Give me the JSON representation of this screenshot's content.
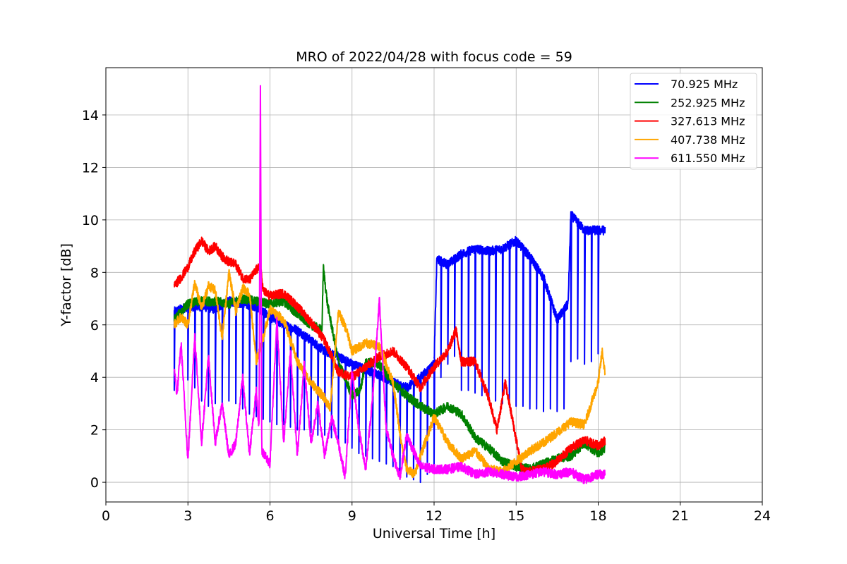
{
  "chart_data": {
    "type": "line",
    "title": "MRO of 2022/04/28 with focus code = 59",
    "xlabel": "Universal Time [h]",
    "ylabel": "Y-factor [dB]",
    "xlim": [
      0,
      24
    ],
    "ylim": [
      -0.75,
      15.8
    ],
    "xticks": [
      0,
      3,
      6,
      9,
      12,
      15,
      18,
      21,
      24
    ],
    "xtick_labels": [
      "0",
      "3",
      "6",
      "9",
      "12",
      "15",
      "18",
      "21",
      "24"
    ],
    "yticks": [
      0,
      2,
      4,
      6,
      8,
      10,
      12,
      14
    ],
    "ytick_labels": [
      "0",
      "2",
      "4",
      "6",
      "8",
      "10",
      "12",
      "14"
    ],
    "grid": true,
    "legend_position": "top-right",
    "series": [
      {
        "name": " 70.925 MHz",
        "color": "#0000ff",
        "points": [
          [
            2.5,
            6.5
          ],
          [
            3.0,
            6.7
          ],
          [
            3.5,
            6.7
          ],
          [
            4.0,
            6.6
          ],
          [
            4.5,
            6.9
          ],
          [
            5.0,
            6.8
          ],
          [
            5.5,
            6.7
          ],
          [
            6.0,
            6.3
          ],
          [
            6.5,
            6.0
          ],
          [
            7.0,
            5.8
          ],
          [
            7.5,
            5.4
          ],
          [
            8.0,
            5.0
          ],
          [
            8.5,
            4.8
          ],
          [
            9.0,
            4.5
          ],
          [
            9.5,
            4.3
          ],
          [
            10.0,
            4.1
          ],
          [
            10.5,
            3.8
          ],
          [
            11.0,
            3.6
          ],
          [
            11.5,
            4.0
          ],
          [
            12.0,
            4.5
          ],
          [
            12.1,
            8.5
          ],
          [
            12.5,
            8.3
          ],
          [
            13.0,
            8.7
          ],
          [
            13.5,
            8.9
          ],
          [
            14.0,
            8.8
          ],
          [
            14.5,
            8.9
          ],
          [
            15.0,
            9.2
          ],
          [
            15.5,
            8.6
          ],
          [
            16.0,
            7.8
          ],
          [
            16.5,
            6.2
          ],
          [
            16.9,
            6.8
          ],
          [
            17.0,
            10.2
          ],
          [
            17.5,
            9.6
          ],
          [
            18.0,
            9.6
          ],
          [
            18.25,
            9.6
          ]
        ],
        "dips": [
          [
            2.5,
            3.5
          ],
          [
            3.0,
            3.9
          ],
          [
            3.25,
            3.6
          ],
          [
            3.5,
            3.1
          ],
          [
            3.75,
            2.9
          ],
          [
            4.0,
            3.0
          ],
          [
            4.25,
            2.9
          ],
          [
            4.5,
            3.1
          ],
          [
            4.75,
            3.0
          ],
          [
            5.0,
            2.8
          ],
          [
            5.25,
            2.6
          ],
          [
            5.5,
            2.5
          ],
          [
            5.75,
            2.4
          ],
          [
            6.0,
            2.3
          ],
          [
            6.25,
            2.2
          ],
          [
            6.5,
            2.2
          ],
          [
            6.75,
            2.1
          ],
          [
            7.0,
            2.0
          ],
          [
            7.25,
            2.0
          ],
          [
            7.5,
            1.9
          ],
          [
            7.75,
            1.8
          ],
          [
            8.0,
            1.8
          ],
          [
            8.25,
            1.7
          ],
          [
            8.5,
            1.6
          ],
          [
            8.75,
            1.5
          ],
          [
            9.0,
            1.3
          ],
          [
            9.25,
            1.1
          ],
          [
            9.5,
            1.0
          ],
          [
            9.75,
            0.9
          ],
          [
            10.0,
            0.8
          ],
          [
            10.25,
            0.7
          ],
          [
            10.5,
            0.6
          ],
          [
            10.75,
            0.4
          ],
          [
            11.0,
            0.2
          ],
          [
            11.25,
            0.1
          ],
          [
            11.5,
            0.0
          ],
          [
            11.75,
            0.3
          ],
          [
            12.0,
            0.4
          ],
          [
            12.25,
            4.0
          ],
          [
            12.5,
            4.5
          ],
          [
            12.75,
            4.8
          ],
          [
            13.0,
            3.5
          ],
          [
            13.25,
            3.5
          ],
          [
            13.5,
            3.4
          ],
          [
            13.75,
            3.3
          ],
          [
            14.0,
            3.2
          ],
          [
            14.25,
            3.1
          ],
          [
            14.5,
            3.0
          ],
          [
            14.75,
            3.0
          ],
          [
            15.0,
            2.9
          ],
          [
            15.25,
            2.9
          ],
          [
            15.5,
            2.8
          ],
          [
            15.75,
            2.8
          ],
          [
            16.0,
            2.7
          ],
          [
            16.25,
            2.8
          ],
          [
            16.5,
            2.7
          ],
          [
            16.75,
            2.8
          ],
          [
            17.0,
            4.6
          ],
          [
            17.25,
            4.7
          ],
          [
            17.5,
            4.5
          ],
          [
            17.75,
            4.6
          ],
          [
            18.0,
            4.9
          ]
        ]
      },
      {
        "name": "252.925 MHz",
        "color": "#008000",
        "points": [
          [
            2.5,
            6.2
          ],
          [
            3.0,
            6.8
          ],
          [
            3.5,
            6.9
          ],
          [
            4.0,
            6.9
          ],
          [
            4.5,
            6.8
          ],
          [
            5.0,
            7.0
          ],
          [
            5.5,
            6.9
          ],
          [
            6.0,
            6.8
          ],
          [
            6.5,
            6.9
          ],
          [
            7.0,
            6.4
          ],
          [
            7.5,
            6.0
          ],
          [
            7.9,
            5.8
          ],
          [
            7.95,
            8.2
          ],
          [
            8.1,
            6.8
          ],
          [
            8.5,
            4.6
          ],
          [
            9.0,
            3.3
          ],
          [
            9.3,
            3.5
          ],
          [
            9.5,
            4.6
          ],
          [
            10.0,
            4.5
          ],
          [
            10.5,
            3.8
          ],
          [
            11.0,
            3.3
          ],
          [
            11.5,
            2.9
          ],
          [
            12.0,
            2.6
          ],
          [
            12.5,
            2.9
          ],
          [
            13.0,
            2.6
          ],
          [
            13.5,
            1.7
          ],
          [
            14.0,
            1.3
          ],
          [
            14.5,
            0.8
          ],
          [
            15.0,
            0.6
          ],
          [
            15.5,
            0.5
          ],
          [
            16.0,
            0.7
          ],
          [
            16.5,
            0.9
          ],
          [
            17.0,
            1.0
          ],
          [
            17.5,
            1.5
          ],
          [
            18.0,
            1.1
          ],
          [
            18.25,
            1.3
          ]
        ]
      },
      {
        "name": "327.613 MHz",
        "color": "#ff0000",
        "points": [
          [
            2.5,
            7.5
          ],
          [
            2.75,
            7.8
          ],
          [
            3.0,
            8.2
          ],
          [
            3.25,
            8.8
          ],
          [
            3.5,
            9.2
          ],
          [
            3.75,
            8.8
          ],
          [
            4.0,
            9.0
          ],
          [
            4.25,
            8.6
          ],
          [
            4.5,
            8.4
          ],
          [
            4.75,
            8.3
          ],
          [
            5.0,
            7.8
          ],
          [
            5.25,
            7.7
          ],
          [
            5.5,
            8.1
          ],
          [
            5.65,
            8.2
          ],
          [
            5.75,
            7.3
          ],
          [
            6.0,
            7.1
          ],
          [
            6.5,
            7.2
          ],
          [
            7.0,
            6.7
          ],
          [
            7.5,
            6.1
          ],
          [
            8.0,
            5.4
          ],
          [
            8.5,
            4.2
          ],
          [
            9.0,
            4.0
          ],
          [
            9.5,
            4.4
          ],
          [
            10.0,
            4.8
          ],
          [
            10.5,
            5.0
          ],
          [
            11.0,
            4.4
          ],
          [
            11.5,
            3.6
          ],
          [
            12.0,
            4.4
          ],
          [
            12.5,
            5.0
          ],
          [
            12.8,
            5.8
          ],
          [
            13.0,
            4.6
          ],
          [
            13.5,
            4.6
          ],
          [
            14.0,
            3.2
          ],
          [
            14.3,
            2.0
          ],
          [
            14.6,
            3.8
          ],
          [
            14.9,
            2.2
          ],
          [
            15.2,
            0.5
          ],
          [
            15.5,
            0.4
          ],
          [
            16.0,
            0.5
          ],
          [
            16.5,
            0.8
          ],
          [
            17.0,
            1.3
          ],
          [
            17.5,
            1.6
          ],
          [
            18.0,
            1.4
          ],
          [
            18.25,
            1.6
          ]
        ]
      },
      {
        "name": "407.738 MHz",
        "color": "#ffa500",
        "points": [
          [
            2.5,
            6.0
          ],
          [
            2.75,
            6.3
          ],
          [
            3.0,
            6.0
          ],
          [
            3.25,
            7.6
          ],
          [
            3.5,
            6.6
          ],
          [
            3.75,
            7.5
          ],
          [
            4.0,
            7.3
          ],
          [
            4.25,
            5.5
          ],
          [
            4.5,
            8.0
          ],
          [
            4.75,
            6.5
          ],
          [
            5.0,
            7.4
          ],
          [
            5.25,
            7.2
          ],
          [
            5.5,
            4.6
          ],
          [
            5.75,
            5.5
          ],
          [
            6.0,
            6.6
          ],
          [
            6.5,
            6.2
          ],
          [
            7.0,
            4.6
          ],
          [
            7.5,
            3.8
          ],
          [
            8.0,
            3.2
          ],
          [
            8.2,
            2.8
          ],
          [
            8.5,
            6.5
          ],
          [
            8.8,
            5.8
          ],
          [
            9.0,
            5.0
          ],
          [
            9.5,
            5.3
          ],
          [
            10.0,
            5.2
          ],
          [
            10.5,
            3.8
          ],
          [
            10.8,
            1.5
          ],
          [
            11.0,
            0.5
          ],
          [
            11.3,
            0.3
          ],
          [
            11.5,
            1.0
          ],
          [
            12.0,
            2.5
          ],
          [
            12.5,
            1.5
          ],
          [
            13.0,
            0.9
          ],
          [
            13.5,
            1.2
          ],
          [
            14.0,
            0.5
          ],
          [
            14.5,
            0.4
          ],
          [
            15.0,
            0.8
          ],
          [
            15.5,
            1.2
          ],
          [
            16.0,
            1.5
          ],
          [
            16.5,
            1.9
          ],
          [
            17.0,
            2.3
          ],
          [
            17.5,
            2.2
          ],
          [
            18.0,
            3.8
          ],
          [
            18.15,
            5.0
          ],
          [
            18.25,
            4.1
          ]
        ]
      },
      {
        "name": "611.550 MHz",
        "color": "#ff00ff",
        "points": [
          [
            2.5,
            4.4
          ],
          [
            2.6,
            3.3
          ],
          [
            2.75,
            5.3
          ],
          [
            3.0,
            0.8
          ],
          [
            3.25,
            5.6
          ],
          [
            3.5,
            1.5
          ],
          [
            3.75,
            4.8
          ],
          [
            4.0,
            1.5
          ],
          [
            4.25,
            3.0
          ],
          [
            4.5,
            1.0
          ],
          [
            4.75,
            1.5
          ],
          [
            5.0,
            4.0
          ],
          [
            5.25,
            1.1
          ],
          [
            5.5,
            3.5
          ],
          [
            5.6,
            2.0
          ],
          [
            5.65,
            15.1
          ],
          [
            5.7,
            1.2
          ],
          [
            6.0,
            0.7
          ],
          [
            6.25,
            6.2
          ],
          [
            6.5,
            1.5
          ],
          [
            6.75,
            5.0
          ],
          [
            7.0,
            1.0
          ],
          [
            7.25,
            4.5
          ],
          [
            7.5,
            1.5
          ],
          [
            7.75,
            3.0
          ],
          [
            8.0,
            1.0
          ],
          [
            8.25,
            2.5
          ],
          [
            8.5,
            1.5
          ],
          [
            8.75,
            0.2
          ],
          [
            9.0,
            4.2
          ],
          [
            9.25,
            2.0
          ],
          [
            9.5,
            0.5
          ],
          [
            9.75,
            3.2
          ],
          [
            10.0,
            6.9
          ],
          [
            10.25,
            2.0
          ],
          [
            10.5,
            1.0
          ],
          [
            10.75,
            0.2
          ],
          [
            11.0,
            1.8
          ],
          [
            11.5,
            0.6
          ],
          [
            12.0,
            0.5
          ],
          [
            12.5,
            0.5
          ],
          [
            13.0,
            0.6
          ],
          [
            13.5,
            0.3
          ],
          [
            14.0,
            0.4
          ],
          [
            14.5,
            0.3
          ],
          [
            15.0,
            0.2
          ],
          [
            15.5,
            0.3
          ],
          [
            16.0,
            0.4
          ],
          [
            16.5,
            0.3
          ],
          [
            17.0,
            0.4
          ],
          [
            17.5,
            0.1
          ],
          [
            18.0,
            0.3
          ],
          [
            18.25,
            0.3
          ]
        ]
      }
    ]
  }
}
